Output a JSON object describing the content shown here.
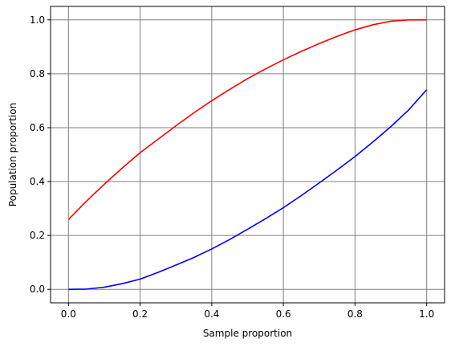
{
  "chart_data": {
    "type": "line",
    "xlabel": "Sample proportion",
    "ylabel": "Population proportion",
    "xlim": [
      -0.05,
      1.05
    ],
    "ylim": [
      -0.05,
      1.05
    ],
    "grid": true,
    "grid_color": "#808080",
    "x_ticks": [
      0.0,
      0.2,
      0.4,
      0.6,
      0.8,
      1.0
    ],
    "y_ticks": [
      0.0,
      0.2,
      0.4,
      0.6,
      0.8,
      1.0
    ],
    "x_tick_labels": [
      "0.0",
      "0.2",
      "0.4",
      "0.6",
      "0.8",
      "1.0"
    ],
    "y_tick_labels": [
      "0.0",
      "0.2",
      "0.4",
      "0.6",
      "0.8",
      "1.0"
    ],
    "series": [
      {
        "color": "#ff0000",
        "x": [
          0.0,
          0.05,
          0.1,
          0.15,
          0.2,
          0.25,
          0.3,
          0.35,
          0.4,
          0.45,
          0.5,
          0.55,
          0.6,
          0.65,
          0.7,
          0.75,
          0.8,
          0.85,
          0.9,
          0.95,
          1.0
        ],
        "y": [
          0.259,
          0.327,
          0.39,
          0.45,
          0.507,
          0.557,
          0.607,
          0.655,
          0.7,
          0.742,
          0.782,
          0.818,
          0.852,
          0.883,
          0.912,
          0.939,
          0.963,
          0.982,
          0.995,
          1.0,
          1.0
        ]
      },
      {
        "color": "#0000ff",
        "x": [
          0.0,
          0.05,
          0.1,
          0.15,
          0.2,
          0.25,
          0.3,
          0.35,
          0.4,
          0.45,
          0.5,
          0.55,
          0.6,
          0.65,
          0.7,
          0.75,
          0.8,
          0.85,
          0.9,
          0.95,
          1.0
        ],
        "y": [
          0.0,
          0.001,
          0.008,
          0.021,
          0.038,
          0.063,
          0.09,
          0.118,
          0.15,
          0.185,
          0.223,
          0.262,
          0.303,
          0.348,
          0.395,
          0.443,
          0.493,
          0.547,
          0.604,
          0.666,
          0.741
        ]
      }
    ]
  }
}
